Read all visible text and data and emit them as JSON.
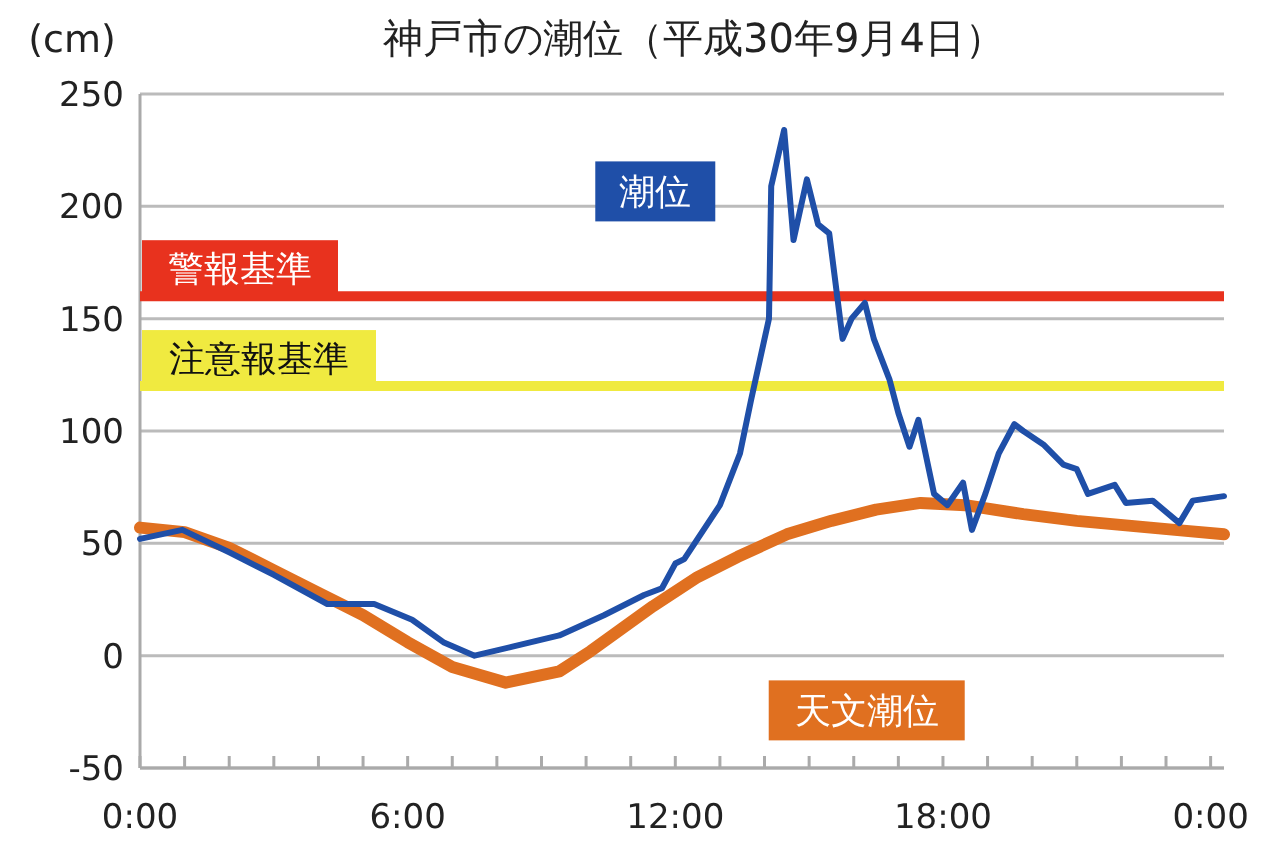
{
  "chart_data": {
    "type": "line",
    "title": "神戸市の潮位（平成30年9月4日）",
    "ylabel": "(cm)",
    "xlim": [
      0,
      24.3
    ],
    "ylim": [
      -50,
      250
    ],
    "yticks": [
      -50,
      0,
      50,
      100,
      150,
      200,
      250
    ],
    "xticks": [
      {
        "value": 0,
        "label": "0:00"
      },
      {
        "value": 1,
        "label": null
      },
      {
        "value": 2,
        "label": null
      },
      {
        "value": 3,
        "label": null
      },
      {
        "value": 4,
        "label": null
      },
      {
        "value": 5,
        "label": null
      },
      {
        "value": 6,
        "label": "6:00"
      },
      {
        "value": 7,
        "label": null
      },
      {
        "value": 8,
        "label": null
      },
      {
        "value": 9,
        "label": null
      },
      {
        "value": 10,
        "label": null
      },
      {
        "value": 11,
        "label": null
      },
      {
        "value": 12,
        "label": "12:00"
      },
      {
        "value": 13,
        "label": null
      },
      {
        "value": 14,
        "label": null
      },
      {
        "value": 15,
        "label": null
      },
      {
        "value": 16,
        "label": null
      },
      {
        "value": 17,
        "label": null
      },
      {
        "value": 18,
        "label": "18:00"
      },
      {
        "value": 19,
        "label": null
      },
      {
        "value": 20,
        "label": null
      },
      {
        "value": 21,
        "label": null
      },
      {
        "value": 22,
        "label": null
      },
      {
        "value": 23,
        "label": null
      },
      {
        "value": 24,
        "label": "0:00"
      }
    ],
    "grid": "y",
    "legend": false,
    "series": [
      {
        "name": "天文潮位",
        "color": "#e07020",
        "x": [
          0,
          1,
          2,
          3,
          4,
          5,
          6,
          7,
          8.2,
          9.4,
          10.1,
          10.8,
          11.5,
          12.5,
          13.4,
          14.5,
          15.5,
          16.5,
          17.5,
          18.5,
          19.8,
          21,
          22.1,
          23.2,
          24.3
        ],
        "values": [
          57,
          55,
          48,
          38,
          28,
          18,
          6,
          -5,
          -12,
          -7,
          2,
          12,
          22,
          35,
          44,
          54,
          60,
          65,
          68,
          67,
          63,
          60,
          58,
          56,
          54
        ]
      },
      {
        "name": "潮位",
        "color": "#1f4fa8",
        "x": [
          0,
          0.95,
          2,
          3,
          4.2,
          5.25,
          6.1,
          6.8,
          7.5,
          8.35,
          9.4,
          10.4,
          11.3,
          11.7,
          12,
          12.2,
          12.5,
          13,
          13.45,
          13.7,
          14.1,
          14.15,
          14.44,
          14.65,
          14.95,
          15.2,
          15.45,
          15.75,
          15.95,
          16.25,
          16.45,
          16.8,
          17,
          17.25,
          17.45,
          17.8,
          18.1,
          18.45,
          18.65,
          18.95,
          19.25,
          19.6,
          19.8,
          20.25,
          20.7,
          21,
          21.25,
          21.85,
          22.1,
          22.7,
          23.3,
          23.6,
          24.3
        ],
        "values": [
          52,
          56,
          46,
          36,
          23,
          23,
          16,
          6,
          0,
          4,
          9,
          18,
          27,
          30,
          41,
          43,
          52,
          67,
          90,
          114,
          150,
          209,
          234,
          185,
          212,
          192,
          188,
          141,
          150,
          157,
          141,
          123,
          108,
          93,
          105,
          72,
          67,
          77,
          56,
          72,
          90,
          103,
          100,
          94,
          85,
          83,
          72,
          76,
          68,
          69,
          59,
          69,
          71
        ]
      }
    ],
    "ref_lines": [
      {
        "axis": "y",
        "value": 160,
        "label": "警報基準",
        "color": "#e8321e"
      },
      {
        "axis": "y",
        "value": 120,
        "label": "注意報基準",
        "color": "#f0ea40"
      }
    ]
  }
}
